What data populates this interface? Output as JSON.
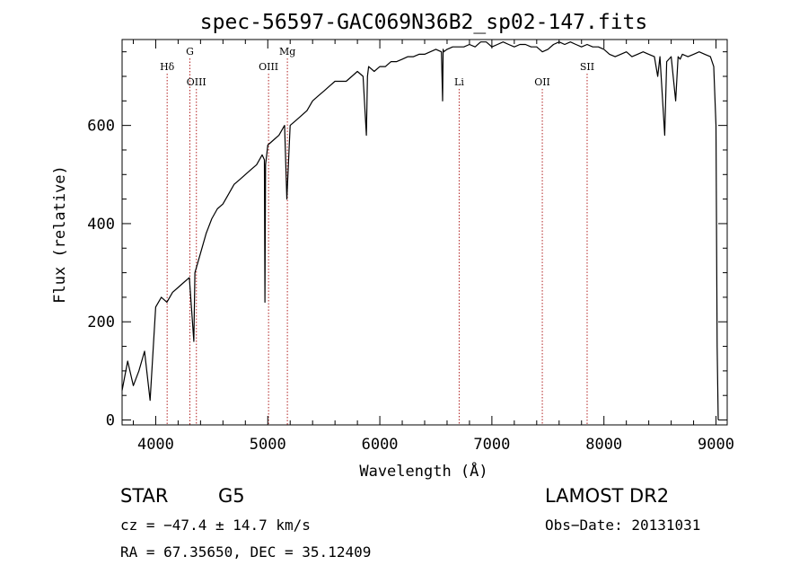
{
  "chart_data": {
    "type": "line",
    "title": "spec-56597-GAC069N36B2_sp02-147.fits",
    "xlabel": "Wavelength (Å)",
    "ylabel": "Flux (relative)",
    "xlim": [
      3700,
      9100
    ],
    "ylim": [
      -10,
      775
    ],
    "x_ticks": [
      4000,
      5000,
      6000,
      7000,
      8000,
      9000
    ],
    "y_ticks": [
      0,
      200,
      400,
      600
    ],
    "x_tick_labels": [
      "4000",
      "5000",
      "6000",
      "7000",
      "8000",
      "9000"
    ],
    "y_tick_labels": [
      "0",
      "200",
      "400",
      "600"
    ],
    "grid": false,
    "series": [
      {
        "x": [
          3700,
          3750,
          3800,
          3850,
          3900,
          3950,
          4000,
          4050,
          4100,
          4150,
          4200,
          4250,
          4300,
          4340,
          4350,
          4400,
          4450,
          4500,
          4550,
          4600,
          4650,
          4700,
          4750,
          4800,
          4850,
          4900,
          4950,
          4970,
          4975,
          4980,
          5000,
          5050,
          5100,
          5150,
          5170,
          5200,
          5250,
          5300,
          5350,
          5400,
          5450,
          5500,
          5550,
          5600,
          5650,
          5700,
          5750,
          5800,
          5850,
          5880,
          5890,
          5900,
          5950,
          6000,
          6050,
          6100,
          6150,
          6200,
          6250,
          6300,
          6350,
          6400,
          6450,
          6500,
          6550,
          6560,
          6565,
          6570,
          6600,
          6650,
          6700,
          6750,
          6800,
          6850,
          6900,
          6950,
          7000,
          7050,
          7100,
          7150,
          7200,
          7250,
          7300,
          7350,
          7400,
          7450,
          7500,
          7550,
          7600,
          7650,
          7700,
          7750,
          7800,
          7850,
          7900,
          7950,
          8000,
          8050,
          8100,
          8150,
          8200,
          8250,
          8300,
          8350,
          8400,
          8450,
          8480,
          8500,
          8542,
          8560,
          8600,
          8640,
          8662,
          8680,
          8700,
          8750,
          8800,
          8850,
          8900,
          8950,
          8980,
          9000,
          9010,
          9020
        ],
        "y": [
          60,
          120,
          70,
          100,
          140,
          40,
          230,
          250,
          240,
          260,
          270,
          280,
          290,
          160,
          300,
          340,
          380,
          410,
          430,
          440,
          460,
          480,
          490,
          500,
          510,
          520,
          540,
          530,
          240,
          520,
          560,
          570,
          580,
          600,
          450,
          600,
          610,
          620,
          630,
          650,
          660,
          670,
          680,
          690,
          690,
          690,
          700,
          710,
          700,
          580,
          700,
          720,
          710,
          720,
          720,
          730,
          730,
          735,
          740,
          740,
          745,
          745,
          750,
          755,
          750,
          650,
          755,
          750,
          755,
          760,
          760,
          760,
          765,
          760,
          770,
          770,
          760,
          765,
          770,
          765,
          760,
          765,
          765,
          760,
          760,
          750,
          755,
          765,
          770,
          765,
          770,
          765,
          760,
          765,
          760,
          760,
          755,
          745,
          740,
          745,
          750,
          740,
          745,
          750,
          745,
          740,
          700,
          740,
          580,
          730,
          740,
          650,
          740,
          735,
          745,
          740,
          745,
          750,
          745,
          740,
          720,
          600,
          150,
          0
        ],
        "name": ""
      }
    ],
    "lines": [
      {
        "label": "Hδ",
        "x": 4102,
        "row": "upper"
      },
      {
        "label": "G",
        "x": 4305,
        "row": "top"
      },
      {
        "label": "OIII",
        "x": 4363,
        "row": "lower"
      },
      {
        "label": "OIII",
        "x": 5007,
        "row": "upper"
      },
      {
        "label": "Mg",
        "x": 5175,
        "row": "top"
      },
      {
        "label": "Li",
        "x": 6708,
        "row": "lower"
      },
      {
        "label": "OII",
        "x": 7450,
        "row": "lower"
      },
      {
        "label": "SII",
        "x": 7850,
        "row": "upper"
      }
    ]
  },
  "info": {
    "object_class": "STAR",
    "subclass": "G5",
    "survey": "LAMOST DR2",
    "cz": "cz = −47.4 ± 14.7 km/s",
    "obs_date": "Obs−Date: 20131031",
    "coords": "RA =  67.35650, DEC =  35.12409"
  },
  "colors": {
    "line": "#000000",
    "marker_lines": "#b22222",
    "axis": "#000000",
    "background": "#ffffff"
  }
}
